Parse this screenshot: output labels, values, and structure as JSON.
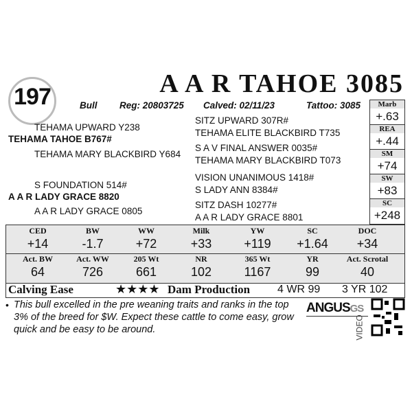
{
  "lot": "197",
  "title": "A A R TAHOE 3085",
  "info": [
    "Bull",
    "Reg: 20803725",
    "Calved: 02/11/23",
    "Tattoo: 3085"
  ],
  "pedigree": {
    "left": [
      "TEHAMA UPWARD Y238",
      "TEHAMA TAHOE B767#",
      "TEHAMA MARY BLACKBIRD Y684",
      "S FOUNDATION 514#",
      "A A R LADY GRACE 8820",
      "A A R LADY GRACE 0805"
    ],
    "right": [
      "SITZ UPWARD 307R#",
      "TEHAMA ELITE BLACKBIRD T735",
      "S A V FINAL ANSWER 0035#",
      "TEHAMA MARY BLACKBIRD T073",
      "VISION UNANIMOUS 1418#",
      "S LADY ANN 8384#",
      "SITZ DASH 10277#",
      "A A R LADY GRACE 8801"
    ]
  },
  "side_epds": [
    [
      "Marb",
      "+.63"
    ],
    [
      "REA",
      "+.44"
    ],
    [
      "SM",
      "+74"
    ],
    [
      "SW",
      "+83"
    ],
    [
      "SC",
      "+248"
    ]
  ],
  "epd_table": {
    "headers": [
      "CED",
      "BW",
      "WW",
      "Milk",
      "YW",
      "SC",
      "DOC"
    ],
    "values": [
      "+14",
      "-1.7",
      "+72",
      "+33",
      "+119",
      "+1.64",
      "+34"
    ]
  },
  "actual_table": {
    "headers": [
      "Act. BW",
      "Act. WW",
      "205 Wt",
      "NR",
      "365 Wt",
      "YR",
      "Act. Scrotal"
    ],
    "values": [
      "64",
      "726",
      "661",
      "102",
      "1167",
      "99",
      "40"
    ]
  },
  "calving_ease": {
    "label": "Calving Ease",
    "stars": "★★★★"
  },
  "dam_production": {
    "label": "Dam Production",
    "values": [
      "4 WR 99",
      "3 YR 102"
    ]
  },
  "note": "This bull excelled in the pre weaning traits and ranks in the top 3% of the breed for $W. Expect these cattle to come easy, grow quick and be easy to be around.",
  "logo": {
    "brand": "ANGUS",
    "suffix": "GS",
    "video": "VIDEO"
  }
}
